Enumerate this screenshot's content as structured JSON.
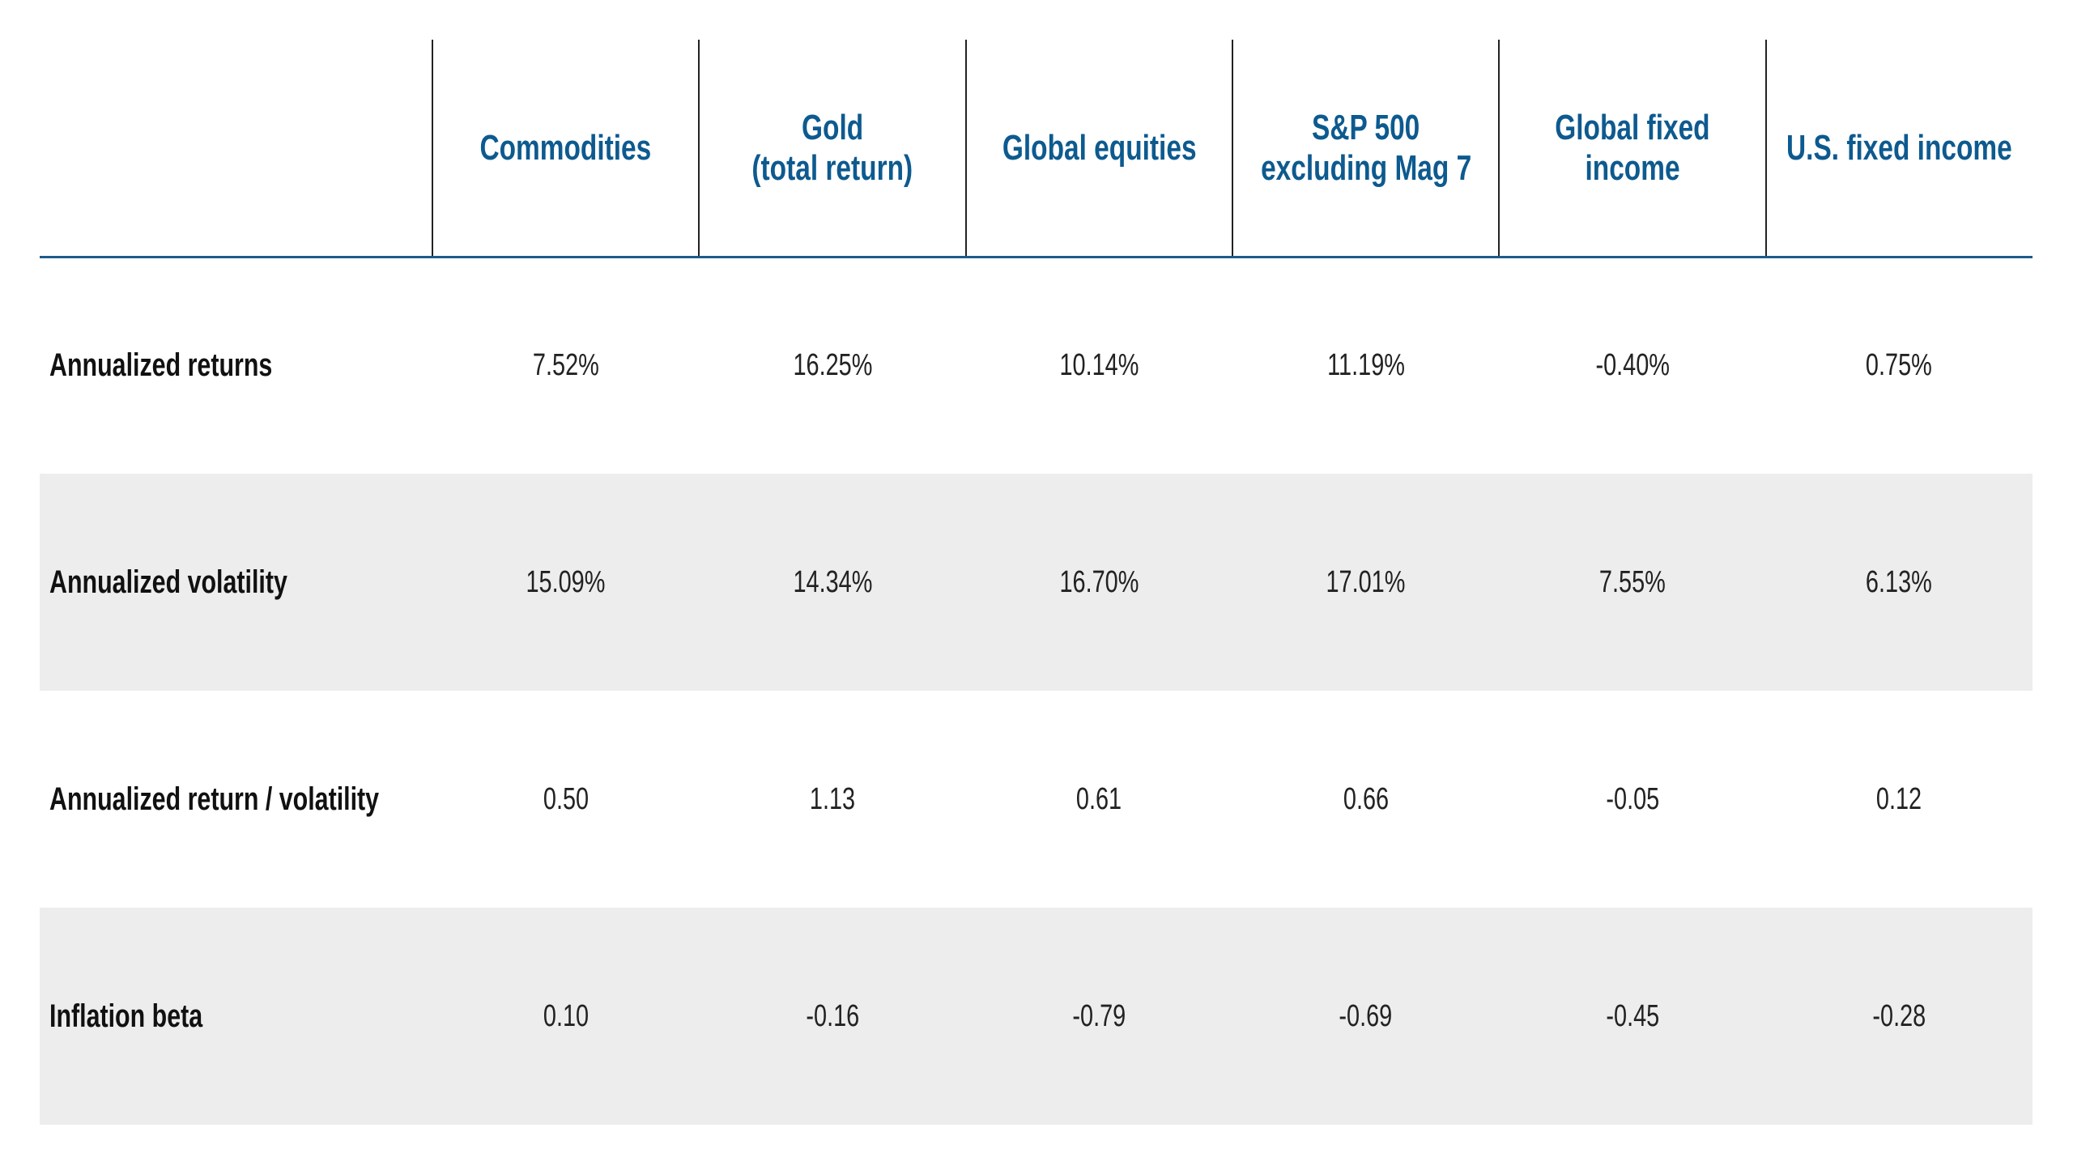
{
  "table": {
    "columns": [
      [
        "Commodities"
      ],
      [
        "Gold",
        "(total return)"
      ],
      [
        "Global equities"
      ],
      [
        "S&P 500",
        "excluding Mag 7"
      ],
      [
        "Global fixed",
        "income"
      ],
      [
        "U.S. fixed income"
      ]
    ],
    "rows": [
      {
        "label": "Annualized returns",
        "cells": [
          "7.52%",
          "16.25%",
          "10.14%",
          "11.19%",
          "-0.40%",
          "0.75%"
        ]
      },
      {
        "label": "Annualized volatility",
        "cells": [
          "15.09%",
          "14.34%",
          "16.70%",
          "17.01%",
          "7.55%",
          "6.13%"
        ]
      },
      {
        "label": "Annualized return / volatility",
        "cells": [
          "0.50",
          "1.13",
          "0.61",
          "0.66",
          "-0.05",
          "0.12"
        ]
      },
      {
        "label": "Inflation beta",
        "cells": [
          "0.10",
          "-0.16",
          "-0.79",
          "-0.69",
          "-0.45",
          "-0.28"
        ]
      }
    ]
  }
}
